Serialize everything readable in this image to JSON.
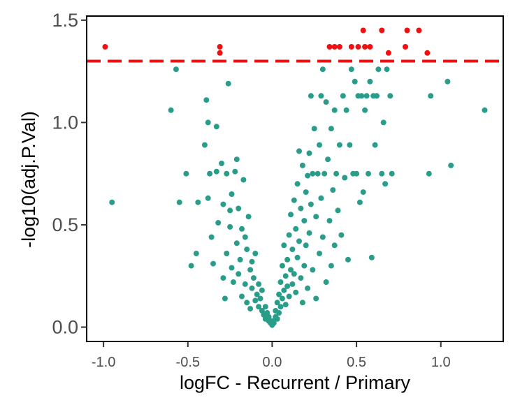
{
  "chart_data": {
    "type": "scatter",
    "title": "",
    "xlabel": "logFC - Recurrent / Primary",
    "ylabel": "-log10(adj.P.Val)",
    "xlim": [
      -1.1,
      1.37
    ],
    "ylim": [
      -0.07,
      1.52
    ],
    "xticks": [
      -1.0,
      -0.5,
      0.0,
      0.5,
      1.0
    ],
    "xtick_labels": [
      "-1.0",
      "-0.5",
      "0.0",
      "0.5",
      "1.0"
    ],
    "yticks": [
      0.0,
      0.5,
      1.0,
      1.5
    ],
    "ytick_labels": [
      "0.0",
      "0.5",
      "1.0",
      "1.5"
    ],
    "grid": false,
    "legend": "none",
    "threshold": {
      "y": 1.3,
      "color": "#ee1111",
      "style": "dashed"
    },
    "colors": {
      "not_significant": "#2a9d8a",
      "significant": "#ee1111"
    },
    "series": [
      {
        "group": "significant",
        "points": [
          [
            -0.99,
            1.37
          ],
          [
            -0.31,
            1.37
          ],
          [
            -0.31,
            1.34
          ],
          [
            0.34,
            1.37
          ],
          [
            0.37,
            1.37
          ],
          [
            0.4,
            1.37
          ],
          [
            0.47,
            1.37
          ],
          [
            0.51,
            1.37
          ],
          [
            0.55,
            1.37
          ],
          [
            0.58,
            1.37
          ],
          [
            0.54,
            1.45
          ],
          [
            0.65,
            1.45
          ],
          [
            0.8,
            1.45
          ],
          [
            0.87,
            1.45
          ],
          [
            0.69,
            1.34
          ],
          [
            0.92,
            1.34
          ],
          [
            0.79,
            1.37
          ]
        ]
      },
      {
        "group": "not_significant",
        "points": [
          [
            -0.95,
            0.61
          ],
          [
            -0.6,
            1.06
          ],
          [
            -0.57,
            1.26
          ],
          [
            -0.55,
            0.61
          ],
          [
            -0.51,
            0.75
          ],
          [
            -0.48,
            0.3
          ],
          [
            -0.45,
            0.36
          ],
          [
            -0.44,
            0.61
          ],
          [
            -0.4,
            0.89
          ],
          [
            -0.39,
            1.11
          ],
          [
            -0.38,
            1.0
          ],
          [
            -0.38,
            0.63
          ],
          [
            -0.37,
            0.75
          ],
          [
            -0.36,
            0.44
          ],
          [
            -0.35,
            0.31
          ],
          [
            -0.33,
            0.98
          ],
          [
            -0.33,
            0.76
          ],
          [
            -0.32,
            0.51
          ],
          [
            -0.3,
            0.8
          ],
          [
            -0.29,
            0.6
          ],
          [
            -0.29,
            0.24
          ],
          [
            -0.28,
            0.14
          ],
          [
            -0.27,
            0.75
          ],
          [
            -0.27,
            0.36
          ],
          [
            -0.26,
            1.19
          ],
          [
            -0.25,
            0.49
          ],
          [
            -0.25,
            0.57
          ],
          [
            -0.24,
            0.65
          ],
          [
            -0.24,
            0.29
          ],
          [
            -0.23,
            0.22
          ],
          [
            -0.22,
            0.76
          ],
          [
            -0.21,
            0.41
          ],
          [
            -0.21,
            0.82
          ],
          [
            -0.2,
            0.58
          ],
          [
            -0.2,
            0.26
          ],
          [
            -0.19,
            0.33
          ],
          [
            -0.18,
            0.48
          ],
          [
            -0.18,
            0.15
          ],
          [
            -0.17,
            0.72
          ],
          [
            -0.16,
            0.44
          ],
          [
            -0.16,
            0.21
          ],
          [
            -0.15,
            0.38
          ],
          [
            -0.15,
            0.12
          ],
          [
            -0.14,
            0.54
          ],
          [
            -0.13,
            0.28
          ],
          [
            -0.13,
            0.09
          ],
          [
            -0.12,
            0.32
          ],
          [
            -0.12,
            0.19
          ],
          [
            -0.11,
            0.24
          ],
          [
            -0.1,
            0.13
          ],
          [
            -0.1,
            0.36
          ],
          [
            -0.09,
            0.16
          ],
          [
            -0.08,
            0.21
          ],
          [
            -0.08,
            0.1
          ],
          [
            -0.07,
            0.14
          ],
          [
            -0.06,
            0.08
          ],
          [
            -0.06,
            0.18
          ],
          [
            -0.05,
            0.06
          ],
          [
            -0.04,
            0.1
          ],
          [
            -0.04,
            0.04
          ],
          [
            -0.03,
            0.07
          ],
          [
            -0.02,
            0.03
          ],
          [
            -0.02,
            0.05
          ],
          [
            -0.01,
            0.02
          ],
          [
            0.0,
            0.01
          ],
          [
            0.0,
            0.03
          ],
          [
            0.01,
            0.02
          ],
          [
            0.02,
            0.05
          ],
          [
            0.02,
            0.08
          ],
          [
            0.03,
            0.04
          ],
          [
            0.03,
            0.12
          ],
          [
            0.04,
            0.07
          ],
          [
            0.04,
            0.16
          ],
          [
            0.05,
            0.1
          ],
          [
            0.05,
            0.22
          ],
          [
            0.06,
            0.14
          ],
          [
            0.06,
            0.3
          ],
          [
            0.07,
            0.18
          ],
          [
            0.07,
            0.4
          ],
          [
            0.08,
            0.25
          ],
          [
            0.08,
            0.11
          ],
          [
            0.09,
            0.33
          ],
          [
            0.09,
            0.2
          ],
          [
            0.1,
            0.45
          ],
          [
            0.1,
            0.15
          ],
          [
            0.11,
            0.28
          ],
          [
            0.11,
            0.55
          ],
          [
            0.12,
            0.38
          ],
          [
            0.12,
            0.21
          ],
          [
            0.13,
            0.62
          ],
          [
            0.13,
            0.26
          ],
          [
            0.14,
            0.48
          ],
          [
            0.14,
            0.17
          ],
          [
            0.15,
            0.7
          ],
          [
            0.15,
            0.34
          ],
          [
            0.16,
            0.86
          ],
          [
            0.16,
            0.42
          ],
          [
            0.17,
            0.58
          ],
          [
            0.17,
            0.24
          ],
          [
            0.18,
            0.79
          ],
          [
            0.18,
            0.12
          ],
          [
            0.19,
            0.52
          ],
          [
            0.19,
            0.3
          ],
          [
            0.2,
            0.66
          ],
          [
            0.2,
            0.4
          ],
          [
            0.21,
            0.74
          ],
          [
            0.21,
            0.19
          ],
          [
            0.22,
            0.85
          ],
          [
            0.22,
            0.46
          ],
          [
            0.23,
            1.13
          ],
          [
            0.23,
            0.6
          ],
          [
            0.24,
            0.75
          ],
          [
            0.24,
            0.28
          ],
          [
            0.25,
            0.97
          ],
          [
            0.26,
            0.54
          ],
          [
            0.26,
            0.14
          ],
          [
            0.27,
            0.75
          ],
          [
            0.28,
            0.36
          ],
          [
            0.28,
            0.89
          ],
          [
            0.29,
            1.13
          ],
          [
            0.29,
            0.63
          ],
          [
            0.3,
            0.44
          ],
          [
            0.3,
            1.26
          ],
          [
            0.31,
            0.75
          ],
          [
            0.32,
            0.22
          ],
          [
            0.32,
            1.1
          ],
          [
            0.33,
            0.82
          ],
          [
            0.34,
            0.52
          ],
          [
            0.35,
            0.97
          ],
          [
            0.35,
            0.3
          ],
          [
            0.36,
            0.67
          ],
          [
            0.37,
            1.06
          ],
          [
            0.37,
            0.4
          ],
          [
            0.38,
            0.75
          ],
          [
            0.39,
            0.57
          ],
          [
            0.4,
            0.89
          ],
          [
            0.41,
            0.45
          ],
          [
            0.42,
            1.13
          ],
          [
            0.43,
            0.73
          ],
          [
            0.44,
            1.06
          ],
          [
            0.45,
            0.33
          ],
          [
            0.46,
            0.89
          ],
          [
            0.47,
            1.26
          ],
          [
            0.48,
            0.75
          ],
          [
            0.49,
            1.2
          ],
          [
            0.5,
            0.75
          ],
          [
            0.51,
            1.13
          ],
          [
            0.52,
            0.61
          ],
          [
            0.53,
            1.13
          ],
          [
            0.54,
            0.66
          ],
          [
            0.55,
            1.06
          ],
          [
            0.56,
            1.13
          ],
          [
            0.57,
            0.75
          ],
          [
            0.58,
            1.2
          ],
          [
            0.59,
            0.34
          ],
          [
            0.6,
            1.13
          ],
          [
            0.61,
            0.89
          ],
          [
            0.62,
            1.13
          ],
          [
            0.63,
            1.26
          ],
          [
            0.65,
            0.75
          ],
          [
            0.66,
            1.0
          ],
          [
            0.67,
            0.7
          ],
          [
            0.68,
            1.26
          ],
          [
            0.7,
            1.13
          ],
          [
            0.71,
            0.75
          ],
          [
            0.93,
            0.75
          ],
          [
            0.94,
            1.13
          ],
          [
            1.04,
            1.2
          ],
          [
            1.06,
            0.79
          ],
          [
            1.26,
            1.06
          ]
        ]
      }
    ]
  }
}
